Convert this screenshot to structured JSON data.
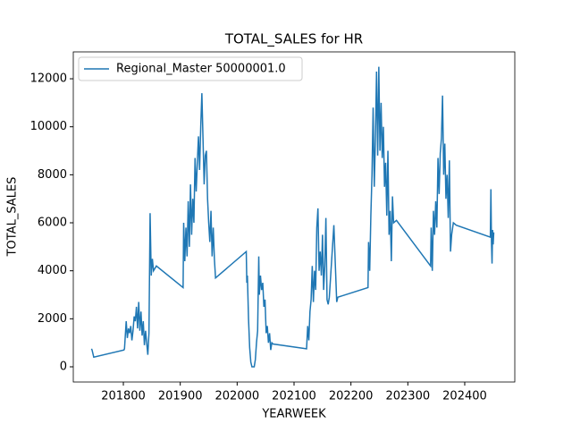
{
  "chart_data": {
    "type": "line",
    "title": "TOTAL_SALES for HR",
    "xlabel": "YEARWEEK",
    "ylabel": "TOTAL_SALES",
    "x": [
      201744,
      201745,
      201748,
      201801,
      201802,
      201805,
      201807,
      201809,
      201811,
      201813,
      201815,
      201817,
      201819,
      201821,
      201823,
      201825,
      201827,
      201829,
      201831,
      201833,
      201835,
      201837,
      201839,
      201841,
      201843,
      201845,
      201847,
      201849,
      201851,
      201853,
      201858,
      201905,
      201906,
      201908,
      201910,
      201912,
      201914,
      201916,
      201918,
      201920,
      201922,
      201924,
      201926,
      201928,
      201930,
      201932,
      201934,
      201936,
      201938,
      201940,
      201942,
      201944,
      201946,
      201948,
      201950,
      201952,
      201954,
      201956,
      201958,
      201960,
      201962,
      202016,
      202017,
      202018,
      202020,
      202022,
      202024,
      202026,
      202030,
      202032,
      202034,
      202036,
      202038,
      202039,
      202041,
      202043,
      202045,
      202047,
      202049,
      202051,
      202053,
      202055,
      202057,
      202059,
      202061,
      202063,
      202122,
      202124,
      202126,
      202128,
      202130,
      202132,
      202134,
      202136,
      202138,
      202140,
      202142,
      202144,
      202146,
      202148,
      202150,
      202152,
      202154,
      202156,
      202158,
      202160,
      202162,
      202170,
      202175,
      202177,
      202230,
      202231,
      202233,
      202235,
      202237,
      202239,
      202241,
      202243,
      202245,
      202247,
      202249,
      202251,
      202253,
      202255,
      202257,
      202259,
      202261,
      202263,
      202265,
      202267,
      202269,
      202271,
      202273,
      202275,
      202280,
      202340,
      202341,
      202343,
      202345,
      202347,
      202349,
      202351,
      202353,
      202355,
      202357,
      202359,
      202361,
      202363,
      202365,
      202367,
      202369,
      202371,
      202373,
      202375,
      202377,
      202380,
      202385,
      202445,
      202446,
      202447,
      202448,
      202449,
      202450,
      202451
    ],
    "series": [
      {
        "name": "Regional_Master 50000001.0",
        "color": "#1f77b4",
        "values": [
          750,
          700,
          400,
          700,
          750,
          1900,
          1200,
          1600,
          1400,
          1700,
          1100,
          1500,
          2100,
          1900,
          2500,
          1600,
          2700,
          1500,
          2300,
          1300,
          1900,
          900,
          1500,
          1000,
          500,
          1400,
          6400,
          3800,
          4500,
          4000,
          4200,
          3300,
          6000,
          4400,
          5800,
          4600,
          6900,
          5000,
          7600,
          5500,
          7000,
          6000,
          8700,
          7300,
          8500,
          9600,
          8200,
          10000,
          11400,
          9500,
          7600,
          8800,
          9000,
          7000,
          6000,
          5200,
          6500,
          4600,
          5800,
          4500,
          3700,
          4800,
          3500,
          3800,
          2000,
          800,
          200,
          0,
          0,
          300,
          1000,
          1500,
          4600,
          3000,
          3800,
          3200,
          3500,
          2500,
          2800,
          1400,
          1700,
          1000,
          1400,
          700,
          1000,
          950,
          750,
          1700,
          1100,
          2300,
          2800,
          4200,
          2700,
          4000,
          3200,
          5800,
          6600,
          4000,
          4800,
          3800,
          5500,
          3200,
          4200,
          6200,
          2800,
          2600,
          2900,
          5900,
          2700,
          2900,
          3300,
          5200,
          4000,
          6300,
          8000,
          10800,
          7500,
          9500,
          12300,
          8800,
          12500,
          9000,
          11000,
          8700,
          10000,
          7500,
          8500,
          6300,
          9000,
          5500,
          6500,
          4400,
          7100,
          6000,
          6100,
          4200,
          5800,
          4000,
          6500,
          5500,
          6900,
          5800,
          8700,
          7200,
          8900,
          9500,
          11300,
          8000,
          9300,
          7000,
          8000,
          6200,
          8600,
          4800,
          5500,
          6000,
          5900,
          5400,
          7400,
          5200,
          4300,
          5700,
          5100,
          5600
        ]
      }
    ],
    "xlim": [
      201712,
      202488
    ],
    "ylim": [
      -634,
      13120
    ],
    "xticks": [
      201800,
      201900,
      202000,
      202100,
      202200,
      202300,
      202400
    ],
    "yticks": [
      0,
      2000,
      4000,
      6000,
      8000,
      10000,
      12000
    ],
    "legend": "upper left"
  }
}
